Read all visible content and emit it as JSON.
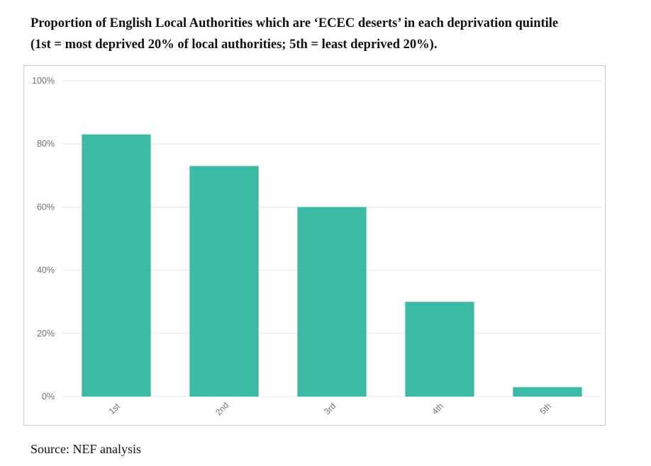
{
  "title_line1": "Proportion of English Local Authorities which are ‘ECEC deserts’ in each deprivation quintile",
  "title_line2": "(1st = most deprived 20% of local authorities; 5th = least deprived 20%).",
  "source": "Source: NEF analysis",
  "chart_data": {
    "type": "bar",
    "categories": [
      "1st",
      "2nd",
      "3rd",
      "4th",
      "5th"
    ],
    "values": [
      83,
      73,
      60,
      30,
      3
    ],
    "ylim": [
      0,
      100
    ],
    "yticks": [
      0,
      20,
      40,
      60,
      80,
      100
    ],
    "ytick_labels": [
      "0%",
      "20%",
      "40%",
      "60%",
      "80%",
      "100%"
    ],
    "bar_color": "#3bbaa6",
    "grid": true,
    "xtick_rotation": "diagonal"
  }
}
